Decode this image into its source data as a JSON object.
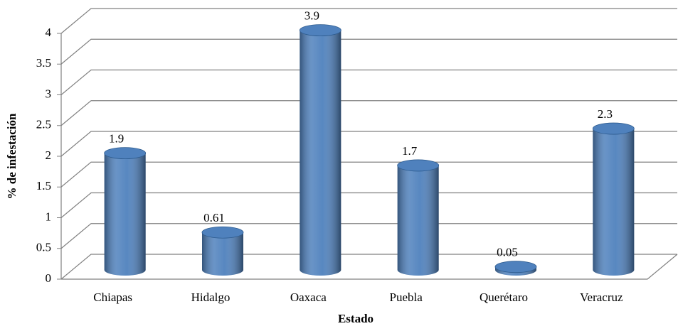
{
  "chart_data": {
    "type": "bar",
    "xlabel": "Estado",
    "ylabel": "% de infestación",
    "categories": [
      "Chiapas",
      "Hidalgo",
      "Oaxaca",
      "Puebla",
      "Querétaro",
      "Veracruz"
    ],
    "values": [
      1.9,
      0.61,
      3.9,
      1.7,
      0.05,
      2.3
    ],
    "color": "#4f81bd",
    "ylim": [
      0,
      4
    ],
    "yticks": [
      0,
      0.5,
      1,
      1.5,
      2,
      2.5,
      3,
      3.5,
      4
    ],
    "grid": true
  }
}
